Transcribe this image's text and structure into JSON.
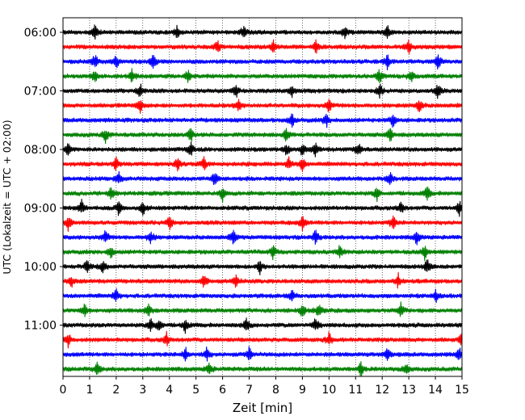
{
  "chart_data": {
    "type": "line",
    "title": "",
    "xlabel": "Zeit  [min]",
    "ylabel": "UTC (Lokalzeit = UTC + 02:00)",
    "xlim": [
      0,
      15
    ],
    "x_ticks": [
      "0",
      "1",
      "2",
      "3",
      "4",
      "5",
      "6",
      "7",
      "8",
      "9",
      "10",
      "11",
      "12",
      "13",
      "14",
      "15"
    ],
    "y_tick_labels": [
      "06:00",
      "07:00",
      "08:00",
      "09:00",
      "10:00",
      "11:00"
    ],
    "grid_x": "dotted vertical lines at each minute",
    "trace_interval_minutes": 15,
    "start_time": "06:00",
    "end_time": "11:45",
    "trace_colors_cycle": [
      "#000000",
      "#ff0000",
      "#0000ff",
      "#008000"
    ],
    "series": [
      {
        "start": "06:00",
        "color": "#000000",
        "events_min": [
          1.2,
          4.3,
          6.8,
          10.6,
          12.2
        ]
      },
      {
        "start": "06:15",
        "color": "#ff0000",
        "events_min": [
          5.8,
          7.9,
          9.5,
          13.0
        ]
      },
      {
        "start": "06:30",
        "color": "#0000ff",
        "events_min": [
          1.2,
          2.0,
          3.4,
          12.2,
          14.1
        ]
      },
      {
        "start": "06:45",
        "color": "#008000",
        "events_min": [
          1.2,
          2.6,
          4.7,
          11.9,
          13.1
        ]
      },
      {
        "start": "07:00",
        "color": "#000000",
        "events_min": [
          2.9,
          6.5,
          8.6,
          11.9,
          14.1
        ]
      },
      {
        "start": "07:15",
        "color": "#ff0000",
        "events_min": [
          2.9,
          6.6,
          10.0,
          13.4
        ]
      },
      {
        "start": "07:30",
        "color": "#0000ff",
        "events_min": [
          8.6,
          9.9,
          12.4
        ]
      },
      {
        "start": "07:45",
        "color": "#008000",
        "events_min": [
          1.6,
          4.8,
          8.4,
          12.3
        ]
      },
      {
        "start": "08:00",
        "color": "#000000",
        "events_min": [
          0.2,
          4.8,
          8.4,
          9.0,
          9.5,
          11.1
        ]
      },
      {
        "start": "08:15",
        "color": "#ff0000",
        "events_min": [
          2.0,
          4.3,
          5.3,
          8.5,
          9.0
        ]
      },
      {
        "start": "08:30",
        "color": "#0000ff",
        "events_min": [
          2.1,
          5.7,
          12.3
        ]
      },
      {
        "start": "08:45",
        "color": "#008000",
        "events_min": [
          1.8,
          6.0,
          11.8,
          13.7
        ]
      },
      {
        "start": "09:00",
        "color": "#000000",
        "events_min": [
          0.7,
          2.1,
          3.0,
          12.7,
          14.9
        ]
      },
      {
        "start": "09:15",
        "color": "#ff0000",
        "events_min": [
          0.2,
          4.0,
          9.0,
          12.4
        ]
      },
      {
        "start": "09:30",
        "color": "#0000ff",
        "events_min": [
          1.6,
          3.3,
          6.4,
          9.5,
          13.3
        ]
      },
      {
        "start": "09:45",
        "color": "#008000",
        "events_min": [
          1.8,
          7.9,
          10.4,
          13.6
        ]
      },
      {
        "start": "10:00",
        "color": "#000000",
        "events_min": [
          0.9,
          1.5,
          7.4,
          13.7
        ]
      },
      {
        "start": "10:15",
        "color": "#ff0000",
        "events_min": [
          0.3,
          5.3,
          6.5,
          12.6
        ]
      },
      {
        "start": "10:30",
        "color": "#0000ff",
        "events_min": [
          2.0,
          8.6,
          14.0
        ]
      },
      {
        "start": "10:45",
        "color": "#008000",
        "events_min": [
          0.8,
          3.2,
          9.0,
          9.6,
          12.7
        ]
      },
      {
        "start": "11:00",
        "color": "#000000",
        "events_min": [
          3.3,
          3.6,
          4.6,
          6.9,
          9.5
        ]
      },
      {
        "start": "11:15",
        "color": "#ff0000",
        "events_min": [
          0.2,
          3.9,
          10.0,
          15.0
        ]
      },
      {
        "start": "11:30",
        "color": "#0000ff",
        "events_min": [
          4.6,
          5.4,
          7.0,
          12.2,
          14.9
        ]
      },
      {
        "start": "11:45",
        "color": "#008000",
        "events_min": [
          1.3,
          5.5,
          11.2,
          12.9
        ]
      }
    ]
  }
}
